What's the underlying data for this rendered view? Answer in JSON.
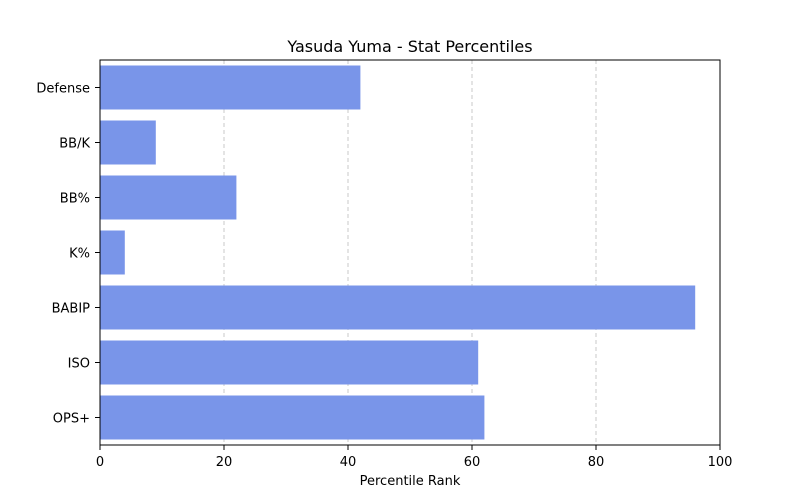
{
  "chart_data": {
    "type": "bar",
    "orientation": "horizontal",
    "title": "Yasuda Yuma - Stat Percentiles",
    "xlabel": "Percentile Rank",
    "ylabel": "",
    "categories": [
      "Defense",
      "BB/K",
      "BB%",
      "K%",
      "BABIP",
      "ISO",
      "OPS+"
    ],
    "values": [
      42,
      9,
      22,
      4,
      96,
      61,
      62
    ],
    "xlim": [
      0,
      100
    ],
    "xticks": [
      "0",
      "20",
      "40",
      "60",
      "80",
      "100"
    ],
    "grid": "x-dashed",
    "bar_color": "#7995e9",
    "legend": "none"
  }
}
